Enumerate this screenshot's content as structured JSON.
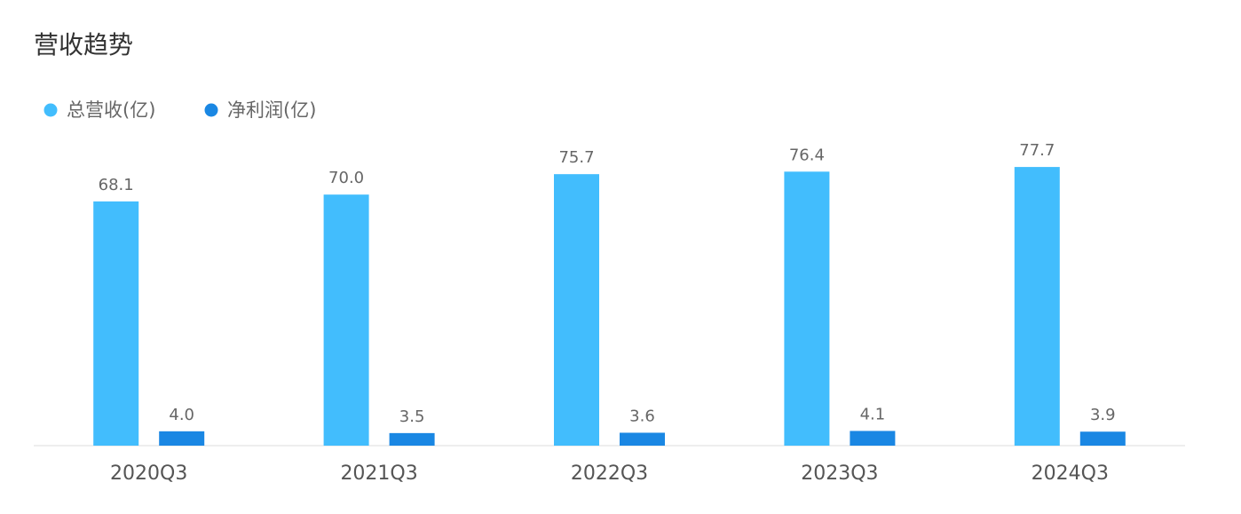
{
  "chart_data": {
    "type": "bar",
    "title": "营收趋势",
    "categories": [
      "2020Q3",
      "2021Q3",
      "2022Q3",
      "2023Q3",
      "2024Q3"
    ],
    "series": [
      {
        "name": "总营收(亿)",
        "color": "#42bdfd",
        "values": [
          68.1,
          70.0,
          75.7,
          76.4,
          77.7
        ],
        "value_labels": [
          "68.1",
          "70.0",
          "75.7",
          "76.4",
          "77.7"
        ]
      },
      {
        "name": "净利润(亿)",
        "color": "#1a87e3",
        "values": [
          4.0,
          3.5,
          3.6,
          4.1,
          3.9
        ],
        "value_labels": [
          "4.0",
          "3.5",
          "3.6",
          "4.1",
          "3.9"
        ]
      }
    ]
  }
}
